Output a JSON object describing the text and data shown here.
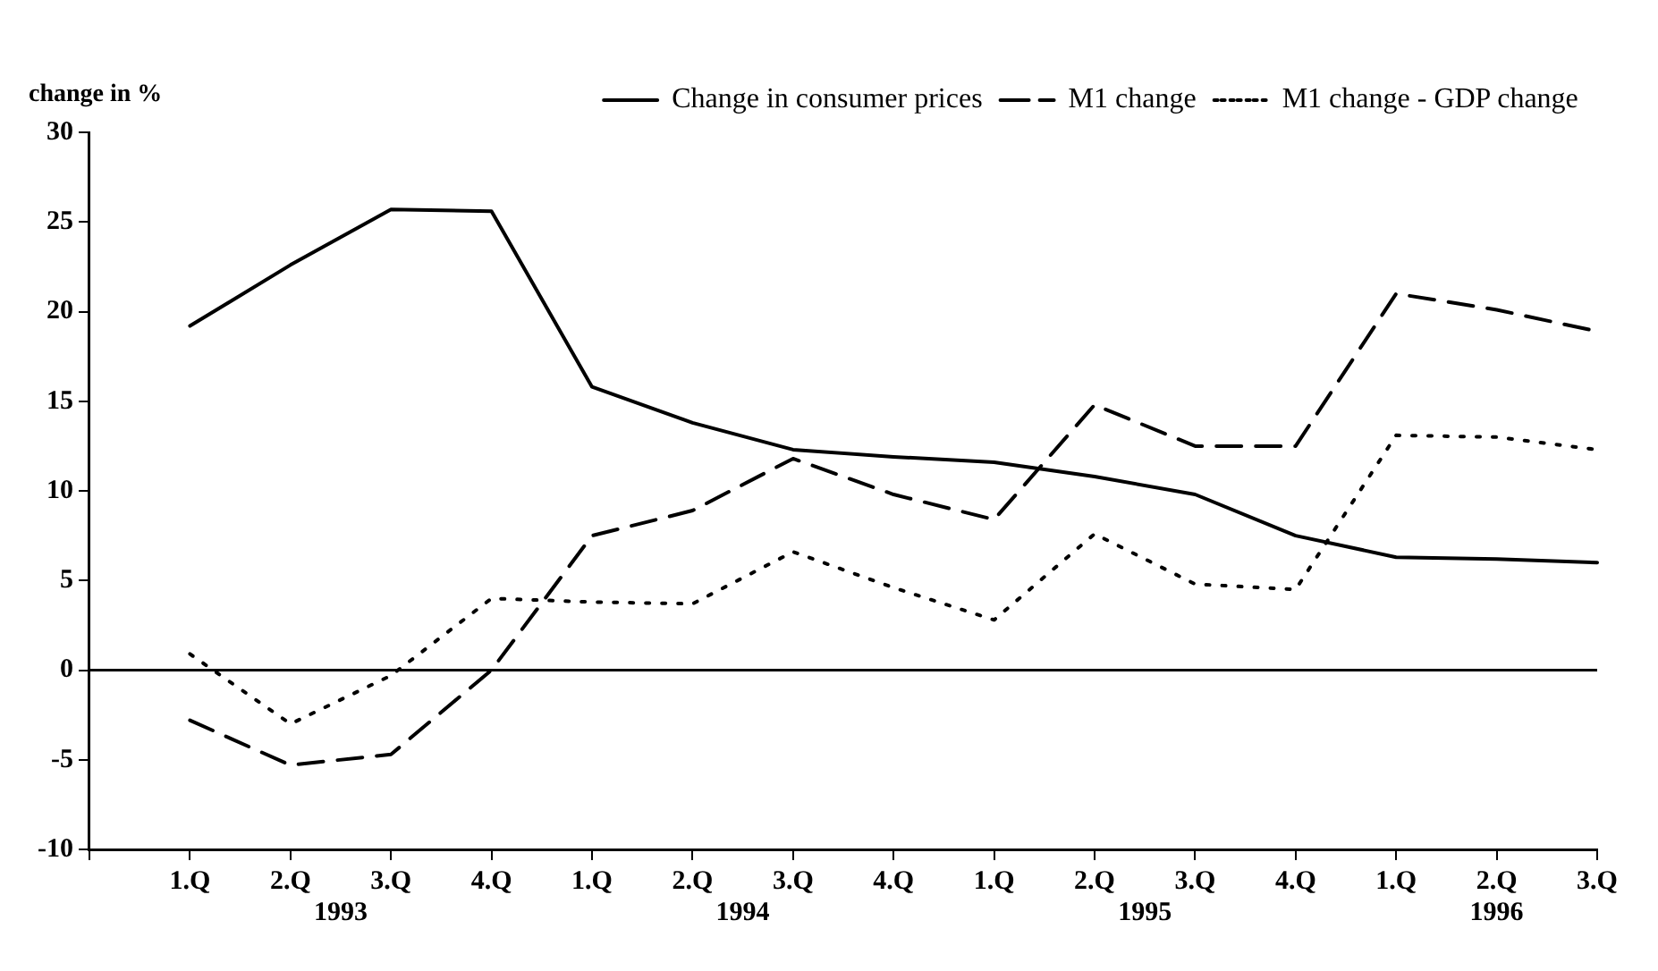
{
  "chart_data": {
    "type": "line",
    "ylabel": "change in %",
    "categories": [
      "1.Q",
      "2.Q",
      "3.Q",
      "4.Q",
      "1.Q",
      "2.Q",
      "3.Q",
      "4.Q",
      "1.Q",
      "2.Q",
      "3.Q",
      "4.Q",
      "1.Q",
      "2.Q",
      "3.Q"
    ],
    "series": [
      {
        "name": "Change in consumer prices",
        "color": "#000000",
        "line_style": "solid",
        "values": [
          19.2,
          22.6,
          25.7,
          25.6,
          15.8,
          13.8,
          12.3,
          11.9,
          11.6,
          10.8,
          9.8,
          7.5,
          6.3,
          6.2,
          6.0
        ]
      },
      {
        "name": "M1 change",
        "color": "#000000",
        "line_style": "dashed",
        "values": [
          -2.8,
          -5.3,
          -4.7,
          0,
          7.5,
          8.9,
          11.8,
          9.8,
          8.4,
          14.8,
          12.5,
          12.5,
          21.0,
          20.1,
          18.9
        ]
      },
      {
        "name": "M1 change - GDP change",
        "color": "#000000",
        "line_style": "dotted",
        "values": [
          0.9,
          -3.0,
          -0.3,
          4.0,
          3.8,
          3.7,
          6.6,
          4.6,
          2.8,
          7.6,
          4.8,
          4.5,
          13.1,
          13.0,
          12.3
        ]
      }
    ],
    "ylim": [
      -10,
      30
    ],
    "yticks": [
      -10,
      -5,
      0,
      5,
      10,
      15,
      20,
      25,
      30
    ],
    "ref_lines": [
      {
        "axis": "y",
        "value": 0,
        "color": "#000000"
      }
    ],
    "annotations": [
      "1993",
      "1994",
      "1995",
      "1996"
    ],
    "grid": false,
    "legend": "top right",
    "marker": "none"
  }
}
